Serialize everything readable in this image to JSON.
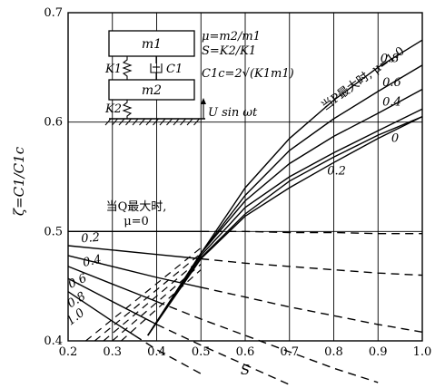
{
  "chart_data": {
    "type": "line",
    "xlabel": "S",
    "ylabel": "ζ=C1/C1c",
    "xlim": [
      0.2,
      1.0
    ],
    "ylim": [
      0.4,
      0.7
    ],
    "x_ticks": [
      "0.2",
      "0.3",
      "0.4",
      "0.5",
      "0.6",
      "0.7",
      "0.8",
      "0.9",
      "1.0"
    ],
    "y_ticks": [
      "0.4",
      "0.5",
      "0.6",
      "0.7"
    ],
    "grid": true,
    "p_group_label": "当P最大时, μ=1.0",
    "q_group_label_line1": "当Q最大时,",
    "q_group_label_line2": "μ=0",
    "p_series": [
      {
        "name": "1.0",
        "label": "1.0",
        "x": [
          0.38,
          0.5,
          0.6,
          0.7,
          0.8,
          0.9,
          1.0
        ],
        "y": [
          0.405,
          0.48,
          0.54,
          0.585,
          0.62,
          0.65,
          0.675
        ]
      },
      {
        "name": "0.8",
        "label": "0.8",
        "x": [
          0.38,
          0.5,
          0.6,
          0.7,
          0.8,
          0.9,
          1.0
        ],
        "y": [
          0.405,
          0.48,
          0.533,
          0.574,
          0.603,
          0.628,
          0.652
        ]
      },
      {
        "name": "0.6",
        "label": "0.6",
        "x": [
          0.38,
          0.5,
          0.6,
          0.7,
          0.8,
          0.9,
          1.0
        ],
        "y": [
          0.405,
          0.48,
          0.528,
          0.562,
          0.587,
          0.608,
          0.63
        ]
      },
      {
        "name": "0.4",
        "label": "0.4",
        "x": [
          0.38,
          0.5,
          0.6,
          0.7,
          0.8,
          0.9,
          1.0
        ],
        "y": [
          0.405,
          0.478,
          0.522,
          0.55,
          0.572,
          0.592,
          0.612
        ]
      },
      {
        "name": "0",
        "label": "0",
        "x": [
          0.38,
          0.5,
          0.6,
          0.7,
          0.8,
          0.9,
          1.0
        ],
        "y": [
          0.405,
          0.475,
          0.514,
          0.54,
          0.563,
          0.585,
          0.605
        ]
      },
      {
        "name": "0.2",
        "label": "0.2",
        "x": [
          0.38,
          0.5,
          0.6,
          0.7,
          0.8,
          0.9,
          1.0
        ],
        "y": [
          0.405,
          0.476,
          0.516,
          0.546,
          0.568,
          0.588,
          0.605
        ]
      }
    ],
    "q_series": [
      {
        "name": "0",
        "label": "",
        "x": [
          0.2,
          0.3,
          0.4,
          0.5
        ],
        "y": [
          0.5,
          0.5,
          0.5,
          0.5
        ],
        "dash_x": [
          0.5,
          0.6,
          0.7,
          0.8,
          0.9,
          1.0
        ],
        "dash_y": [
          0.5,
          0.5,
          0.499,
          0.499,
          0.498,
          0.498
        ]
      },
      {
        "name": "0.2",
        "label": "0.2",
        "x": [
          0.2,
          0.3,
          0.4,
          0.5
        ],
        "y": [
          0.487,
          0.483,
          0.479,
          0.475
        ],
        "dash_x": [
          0.5,
          0.6,
          0.7,
          0.8,
          0.9,
          1.0
        ],
        "dash_y": [
          0.475,
          0.471,
          0.468,
          0.465,
          0.462,
          0.46
        ]
      },
      {
        "name": "0.4",
        "label": "0.4",
        "x": [
          0.2,
          0.3,
          0.4,
          0.5
        ],
        "y": [
          0.478,
          0.468,
          0.458,
          0.449
        ],
        "dash_x": [
          0.5,
          0.6,
          0.7,
          0.8,
          0.9,
          1.0
        ],
        "dash_y": [
          0.449,
          0.44,
          0.431,
          0.423,
          0.415,
          0.408
        ]
      },
      {
        "name": "0.6",
        "label": "0.6",
        "x": [
          0.2,
          0.3,
          0.4
        ],
        "y": [
          0.468,
          0.452,
          0.436
        ],
        "dash_x": [
          0.4,
          0.5,
          0.6,
          0.7,
          0.8,
          0.9
        ],
        "dash_y": [
          0.436,
          0.42,
          0.405,
          0.39,
          0.375,
          0.362
        ]
      },
      {
        "name": "0.8",
        "label": "0.8",
        "x": [
          0.2,
          0.3,
          0.4
        ],
        "y": [
          0.457,
          0.436,
          0.415
        ],
        "dash_x": [
          0.4,
          0.5,
          0.6,
          0.7
        ],
        "dash_y": [
          0.415,
          0.396,
          0.378,
          0.36
        ]
      },
      {
        "name": "1.0",
        "label": "1.0",
        "x": [
          0.2,
          0.3,
          0.35
        ],
        "y": [
          0.445,
          0.418,
          0.405
        ],
        "dash_x": [
          0.35,
          0.4,
          0.5
        ],
        "dash_y": [
          0.405,
          0.392,
          0.37
        ]
      }
    ],
    "transition_lines": [
      {
        "x": [
          0.24,
          0.5
        ],
        "y": [
          0.4,
          0.485
        ]
      },
      {
        "x": [
          0.26,
          0.5
        ],
        "y": [
          0.4,
          0.48
        ]
      },
      {
        "x": [
          0.28,
          0.5
        ],
        "y": [
          0.4,
          0.475
        ]
      },
      {
        "x": [
          0.3,
          0.5
        ],
        "y": [
          0.4,
          0.47
        ]
      },
      {
        "x": [
          0.32,
          0.5
        ],
        "y": [
          0.4,
          0.465
        ]
      }
    ]
  },
  "schematic": {
    "m1": "m1",
    "m2": "m2",
    "k1": "K1",
    "k2": "K2",
    "c1": "C1",
    "formula_mu": "μ=m2/m1",
    "formula_s": "S=K2/K1",
    "formula_c1c": "C1c=2√(K1m1)",
    "excitation": "U sin ωt"
  }
}
